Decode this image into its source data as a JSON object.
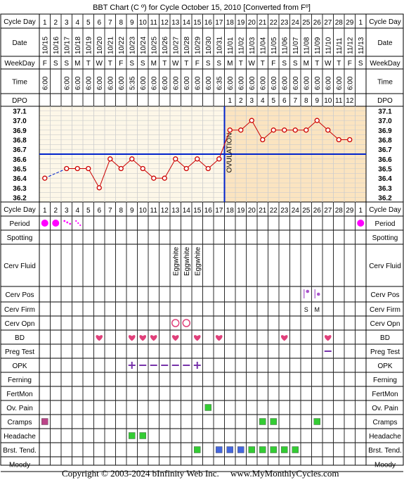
{
  "title": "BBT Chart (C º) for Cycle October 15, 2010  [Converted from Fº]",
  "footer_left": "Copyright © 2003-2024 bInfinity Web Inc.",
  "footer_right": "www.MyMonthlyCycles.com",
  "colors": {
    "grid": "#000000",
    "grid_light": "#cccccc",
    "temp_bg_pre": "#fdf7e8",
    "temp_bg_post": "#fbe4c0",
    "line": "#cc0000",
    "cover_line": "#0022cc",
    "period": "#ff00ff",
    "heart": "#e0407a",
    "green": "#33cc33",
    "blue": "#4466dd",
    "cramp": "#bb4488",
    "opk": "#7733aa",
    "cerv": "#aa55cc"
  },
  "rows": {
    "cycle_day": "Cycle Day",
    "date": "Date",
    "weekday": "WeekDay",
    "time": "Time",
    "dpo": "DPO",
    "period": "Period",
    "spotting": "Spotting",
    "cerv_fluid": "Cerv Fluid",
    "cerv_pos": "Cerv Pos",
    "cerv_firm": "Cerv Firm",
    "cerv_opn": "Cerv Opn",
    "bd": "BD",
    "preg_test": "Preg Test",
    "opk": "OPK",
    "ferning": "Ferning",
    "fertmon": "FertMon",
    "ov_pain": "Ov. Pain",
    "cramps": "Cramps",
    "headache": "Headache",
    "brst_tend": "Brst. Tend.",
    "moody": "Moody"
  },
  "ovulation_label": "OVULATION",
  "chart_data": {
    "type": "line",
    "title": "BBT Chart (C º) for Cycle October 15, 2010  [Converted from Fº]",
    "cycle_days": [
      "1",
      "2",
      "3",
      "4",
      "5",
      "6",
      "7",
      "8",
      "9",
      "10",
      "11",
      "12",
      "13",
      "14",
      "15",
      "16",
      "17",
      "18",
      "19",
      "20",
      "21",
      "22",
      "23",
      "24",
      "25",
      "26",
      "27",
      "28",
      "29",
      "1"
    ],
    "dates": [
      "10/15",
      "10/16",
      "10/17",
      "10/18",
      "10/19",
      "10/20",
      "10/21",
      "10/22",
      "10/23",
      "10/24",
      "10/25",
      "10/26",
      "10/27",
      "10/28",
      "10/29",
      "10/30",
      "10/31",
      "11/01",
      "11/02",
      "11/03",
      "11/04",
      "11/05",
      "11/06",
      "11/07",
      "11/08",
      "11/09",
      "11/10",
      "11/11",
      "11/12",
      "11/13"
    ],
    "weekdays": [
      "F",
      "S",
      "S",
      "M",
      "T",
      "W",
      "T",
      "F",
      "S",
      "S",
      "M",
      "T",
      "W",
      "T",
      "F",
      "S",
      "S",
      "M",
      "T",
      "W",
      "T",
      "F",
      "S",
      "S",
      "M",
      "T",
      "W",
      "T",
      "F",
      "S"
    ],
    "times": [
      "6:00",
      "",
      "6:00",
      "6:00",
      "6:00",
      "6:00",
      "6:00",
      "6:00",
      "5:35",
      "6:00",
      "6:00",
      "6:00",
      "6:00",
      "6:00",
      "6:00",
      "6:00",
      "6:35",
      "6:00",
      "6:00",
      "6:00",
      "6:00",
      "6:00",
      "6:00",
      "6:00",
      "6:00",
      "6:00",
      "6:00",
      "6:00",
      "6:00",
      ""
    ],
    "dpo": [
      "",
      "",
      "",
      "",
      "",
      "",
      "",
      "",
      "",
      "",
      "",
      "",
      "",
      "",
      "",
      "",
      "",
      "1",
      "2",
      "3",
      "4",
      "5",
      "6",
      "7",
      "8",
      "9",
      "10",
      "11",
      "12",
      ""
    ],
    "y_ticks": [
      "37.1",
      "37.0",
      "36.9",
      "36.8",
      "36.7",
      "36.6",
      "36.5",
      "36.4",
      "36.3",
      "36.2"
    ],
    "ylim": [
      36.2,
      37.1
    ],
    "temps": [
      36.4,
      null,
      36.5,
      36.5,
      36.5,
      36.3,
      36.6,
      36.5,
      36.6,
      36.5,
      36.4,
      36.4,
      36.6,
      36.5,
      36.6,
      36.5,
      36.6,
      36.9,
      36.9,
      37.0,
      36.8,
      36.9,
      36.9,
      36.9,
      36.9,
      37.0,
      36.9,
      36.8,
      36.8,
      null
    ],
    "cover_line": 36.65,
    "ovulation_day_index": 16,
    "period": [
      "heavy",
      "heavy",
      "light",
      "spot",
      "",
      "",
      "",
      "",
      "",
      "",
      "",
      "",
      "",
      "",
      "",
      "",
      "",
      "",
      "",
      "",
      "",
      "",
      "",
      "",
      "",
      "",
      "",
      "",
      "",
      "heavy"
    ],
    "cerv_fluid": [
      "",
      "",
      "",
      "",
      "",
      "",
      "",
      "",
      "",
      "",
      "",
      "",
      "Eggwhite",
      "Eggwhite",
      "Eggwhite",
      "",
      "",
      "",
      "",
      "",
      "",
      "",
      "",
      "",
      "",
      "",
      "",
      "",
      "",
      ""
    ],
    "cerv_pos": {
      "24": "high",
      "25": "med"
    },
    "cerv_firm": {
      "24": "S",
      "25": "M"
    },
    "cerv_opn": [
      12,
      13
    ],
    "bd": [
      5,
      8,
      9,
      10,
      12,
      14,
      16,
      22,
      26
    ],
    "preg_test": [
      26
    ],
    "opk_positive": [
      8,
      14
    ],
    "opk_negative": [
      9,
      10,
      11,
      12,
      13
    ],
    "ov_pain": [
      15
    ],
    "cramps_purple": [
      0
    ],
    "cramps_green": [
      20,
      21,
      25
    ],
    "headache": [
      8,
      9
    ],
    "brst_tend_green": [
      14,
      19,
      20,
      21,
      22,
      23
    ],
    "brst_tend_blue": [
      16,
      17,
      18
    ]
  }
}
